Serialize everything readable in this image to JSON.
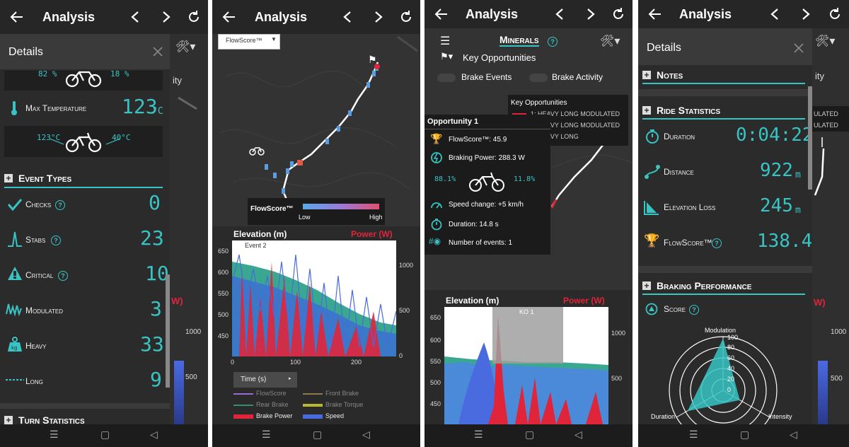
{
  "app_title": "Analysis",
  "panel1": {
    "details_title": "Details",
    "bike_top": {
      "left": "82 %",
      "right": "18 %"
    },
    "max_temp_label": "Max Temperature",
    "max_temp_value": "123",
    "max_temp_unit": "°C",
    "bike_temp": {
      "left": "123°C",
      "right": "40°C"
    },
    "event_types_title": "Event Types",
    "events": [
      {
        "label": "Checks",
        "value": "0",
        "help": true
      },
      {
        "label": "Stabs",
        "value": "23",
        "help": true
      },
      {
        "label": "Critical",
        "value": "10",
        "help": true
      },
      {
        "label": "Modulated",
        "value": "3",
        "help": false
      },
      {
        "label": "Heavy",
        "value": "33",
        "help": false
      },
      {
        "label": "Long",
        "value": "9",
        "help": false
      }
    ],
    "turn_stats_title": "Turn Statistics",
    "peek_text": "ity",
    "peek_ticks": [
      "1000",
      "500"
    ]
  },
  "panel2": {
    "dropdown_value": "FlowScore™",
    "legend_title": "FlowScore™",
    "legend_low": "Low",
    "legend_high": "High",
    "chart": {
      "left_title": "Elevation (m)",
      "right_title": "Power (W)",
      "annotation": "Event 2",
      "y_left_ticks": [
        "650",
        "600",
        "550",
        "500",
        "450"
      ],
      "y_right_ticks": [
        "1000",
        "500",
        "0"
      ],
      "x_ticks": [
        "0",
        "100",
        "200"
      ]
    },
    "x_axis_select": "Time (s)",
    "legend_items": [
      {
        "label": "FlowScore",
        "color": "#9a6ad8"
      },
      {
        "label": "Front Brake",
        "color": "#8c7a4a"
      },
      {
        "label": "Rear Brake",
        "color": "#3b8c6a"
      },
      {
        "label": "Brake Torque",
        "color": "#b8b830"
      },
      {
        "label": "Brake Power",
        "color": "#e0253a"
      },
      {
        "label": "Speed",
        "color": "#4a6ae0"
      }
    ]
  },
  "panel3": {
    "minerals_title": "Minerals",
    "key_opps_label": "Key Opportunities",
    "toggle_brake_events": "Brake Events",
    "toggle_brake_activity": "Brake Activity",
    "kopp_title": "Key Opportunities",
    "kopp_items": [
      {
        "label": "1: HEAVY LONG MODULATED",
        "color": "#e0253a"
      },
      {
        "label": "2: HEAVY LONG MODULATED",
        "color": "#3cb890"
      },
      {
        "label": "3: HEAVY LONG",
        "color": "#7a5ab8"
      }
    ],
    "opp": {
      "title": "Opportunity 1",
      "flowscore": "FlowScore™: 45.9",
      "braking_power": "Braking Power: 288.3 W",
      "front_pct": "88.1%",
      "rear_pct": "11.8%",
      "speed_change": "Speed change: +5 km/h",
      "duration": "Duration: 14.8 s",
      "events": "Number of events: 1"
    },
    "chart": {
      "left_title": "Elevation (m)",
      "right_title": "Power (W)",
      "ko_label": "KO 1",
      "y_left_ticks": [
        "650",
        "600",
        "550",
        "500",
        "450"
      ],
      "y_right_ticks": [
        "1000",
        "500"
      ]
    }
  },
  "panel4": {
    "details_title": "Details",
    "notes_title": "Notes",
    "ride_stats_title": "Ride Statistics",
    "stats": [
      {
        "label": "Duration",
        "value": "0:04:22",
        "unit": ""
      },
      {
        "label": "Distance",
        "value": "922",
        "unit": "m"
      },
      {
        "label": "Elevation Loss",
        "value": "245",
        "unit": "m"
      },
      {
        "label": "FlowScore™",
        "value": "138.4",
        "unit": ""
      }
    ],
    "braking_title": "Braking Performance",
    "score_label": "Score",
    "radar_labels": {
      "top": "Modulation",
      "right": "Intensity",
      "left": "Duration"
    },
    "radar_ticks": [
      "100",
      "80",
      "60",
      "40",
      "20",
      "0"
    ],
    "radar_values": {
      "modulation": 95,
      "intensity": 35,
      "duration": 75
    },
    "peek_text": "ity",
    "peek_labels": [
      "ULATED",
      "ULATED"
    ],
    "peek_ticks": [
      "1000",
      "500"
    ]
  }
}
